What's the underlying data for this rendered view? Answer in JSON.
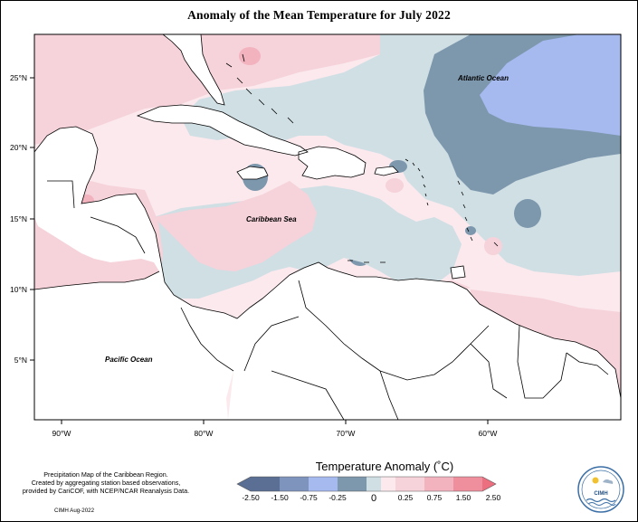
{
  "title": "Anomaly of the Mean Temperature for July 2022",
  "map": {
    "lat_labels": [
      "25°N",
      "20°N",
      "15°N",
      "10°N",
      "5°N"
    ],
    "lon_labels": [
      "90°W",
      "80°W",
      "70°W",
      "60°W"
    ],
    "places": {
      "atlantic": "Atlantic Ocean",
      "caribbean": "Caribbean Sea",
      "pacific": "Pacific Ocean"
    },
    "colors": {
      "c_neg250": "#5a6f93",
      "c_neg150": "#7f94bd",
      "c_neg075": "#a6baf0",
      "c_neg025": "#7d97ad",
      "c_zero_neg": "#cfdfe4",
      "c_zero_pos": "#fbe9ed",
      "c_pos025": "#f6d2da",
      "c_pos075": "#f2b3bf",
      "c_pos150": "#ef8e9c",
      "c_pos250": "#ec6f80",
      "land": "#ffffff"
    }
  },
  "legend": {
    "title": "Temperature Anomaly (˚C)",
    "ticks": [
      "-2.50",
      "-1.50",
      "-0.75",
      "-0.25",
      "0",
      "0.25",
      "0.75",
      "1.50",
      "2.50"
    ]
  },
  "footer": {
    "note_line1": "Precipitation Map of the Caribbean Region.",
    "note_line2": "Created by aggregating station based observations,",
    "note_line3": "provided by CariCOF, with NCEP/NCAR Reanalysis Data.",
    "stamp": "CIMH Aug-2022",
    "logo_text": "CIMH"
  }
}
